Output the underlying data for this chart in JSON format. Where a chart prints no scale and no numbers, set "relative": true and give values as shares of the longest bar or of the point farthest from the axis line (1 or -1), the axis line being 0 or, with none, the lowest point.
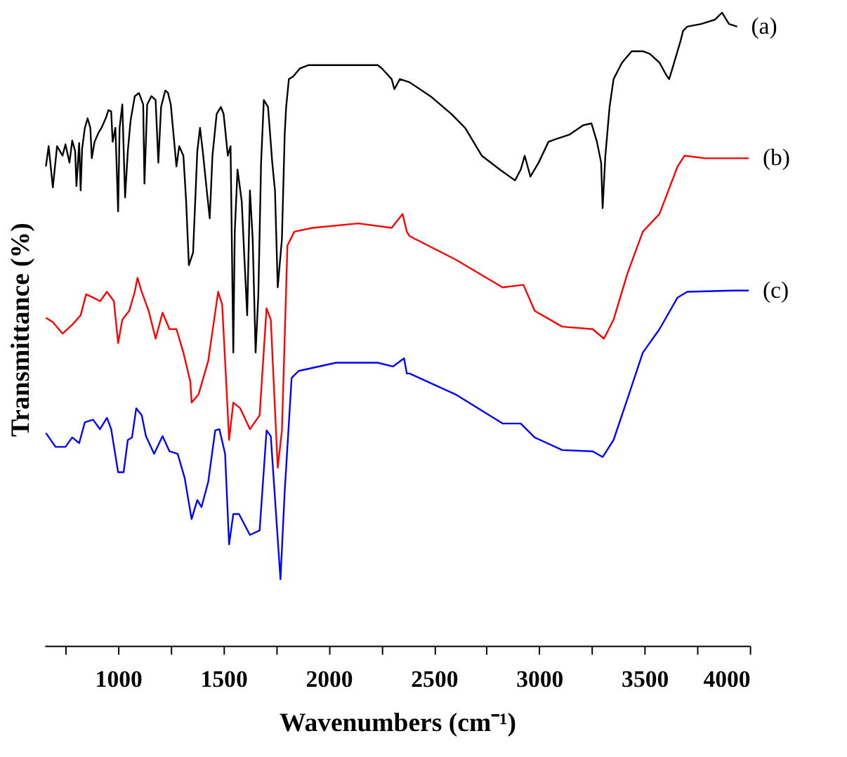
{
  "chart_data": {
    "type": "line",
    "relative": true,
    "xlabel": "Wavenumbers (cm⁻¹)",
    "ylabel": "Transmittance (%)",
    "xlim": [
      650,
      4000
    ],
    "xticks": [
      {
        "value": 750,
        "label": null
      },
      1000,
      {
        "value": 1250,
        "label": null
      },
      1500,
      {
        "value": 1750,
        "label": null
      },
      2000,
      {
        "value": 2250,
        "label": null
      },
      2500,
      {
        "value": 2750,
        "label": null
      },
      3000,
      {
        "value": 3250,
        "label": null
      },
      3500,
      {
        "value": 3750,
        "label": null
      },
      4000
    ],
    "tick_labels": "x",
    "grid": false,
    "legend": false,
    "marker": "none",
    "line_style": "solid",
    "series": [
      {
        "name": "(a)",
        "color": "#000000",
        "x": [
          657,
          670,
          690,
          710,
          736,
          750,
          769,
          782,
          796,
          802,
          815,
          822,
          829,
          842,
          855,
          868,
          875,
          888,
          908,
          921,
          941,
          954,
          967,
          974,
          987,
          1000,
          1007,
          1020,
          1033,
          1046,
          1059,
          1079,
          1099,
          1119,
          1125,
          1138,
          1158,
          1178,
          1191,
          1204,
          1224,
          1237,
          1250,
          1277,
          1290,
          1310,
          1323,
          1336,
          1356,
          1376,
          1389,
          1402,
          1422,
          1435,
          1448,
          1468,
          1488,
          1501,
          1521,
          1534,
          1547,
          1554,
          1567,
          1587,
          1600,
          1613,
          1626,
          1639,
          1653,
          1666,
          1679,
          1692,
          1712,
          1732,
          1745,
          1758,
          1778,
          1791,
          1798,
          1811,
          1831,
          1864,
          1903,
          1989,
          2233,
          2252,
          2299,
          2312,
          2338,
          2384,
          2483,
          2582,
          2648,
          2727,
          2813,
          2885,
          2912,
          2931,
          2958,
          2997,
          3044,
          3076,
          3142,
          3208,
          3248,
          3274,
          3294,
          3301,
          3314,
          3334,
          3353,
          3393,
          3439,
          3492,
          3525,
          3571,
          3604,
          3617,
          3637,
          3670,
          3683,
          3703,
          3769,
          3835,
          3868,
          3901,
          3940
        ],
        "values": [
          0.757,
          0.789,
          0.724,
          0.789,
          0.774,
          0.792,
          0.763,
          0.798,
          0.781,
          0.726,
          0.794,
          0.719,
          0.785,
          0.818,
          0.833,
          0.818,
          0.77,
          0.796,
          0.811,
          0.818,
          0.833,
          0.846,
          0.844,
          0.796,
          0.818,
          0.686,
          0.818,
          0.855,
          0.708,
          0.781,
          0.829,
          0.868,
          0.873,
          0.855,
          0.73,
          0.855,
          0.868,
          0.862,
          0.763,
          0.851,
          0.877,
          0.873,
          0.855,
          0.757,
          0.789,
          0.774,
          0.702,
          0.601,
          0.621,
          0.781,
          0.818,
          0.781,
          0.716,
          0.675,
          0.774,
          0.84,
          0.851,
          0.84,
          0.774,
          0.789,
          0.463,
          0.654,
          0.752,
          0.702,
          0.61,
          0.522,
          0.719,
          0.643,
          0.463,
          0.555,
          0.763,
          0.862,
          0.851,
          0.763,
          0.719,
          0.566,
          0.643,
          0.807,
          0.851,
          0.895,
          0.899,
          0.912,
          0.917,
          0.917,
          0.917,
          0.912,
          0.895,
          0.879,
          0.895,
          0.89,
          0.868,
          0.84,
          0.818,
          0.774,
          0.752,
          0.735,
          0.752,
          0.774,
          0.741,
          0.763,
          0.796,
          0.8,
          0.807,
          0.822,
          0.825,
          0.796,
          0.763,
          0.691,
          0.774,
          0.851,
          0.895,
          0.921,
          0.939,
          0.939,
          0.935,
          0.921,
          0.901,
          0.895,
          0.917,
          0.954,
          0.971,
          0.978,
          0.982,
          0.989,
          1,
          0.982,
          0.978
        ]
      },
      {
        "name": "(b)",
        "color": "#ff0000",
        "x": [
          657,
          690,
          736,
          782,
          822,
          848,
          881,
          914,
          947,
          980,
          1000,
          1020,
          1053,
          1079,
          1092,
          1112,
          1145,
          1178,
          1211,
          1244,
          1277,
          1310,
          1343,
          1349,
          1382,
          1428,
          1475,
          1494,
          1514,
          1527,
          1547,
          1580,
          1626,
          1672,
          1705,
          1725,
          1758,
          1778,
          1804,
          1837,
          1923,
          2140,
          2299,
          2351,
          2371,
          2384,
          2602,
          2826,
          2925,
          2978,
          3109,
          3254,
          3307,
          3353,
          3419,
          3492,
          3571,
          3657,
          3690,
          3788,
          3920,
          3995
        ],
        "values": [
          0.518,
          0.511,
          0.493,
          0.507,
          0.522,
          0.555,
          0.55,
          0.544,
          0.559,
          0.544,
          0.478,
          0.515,
          0.529,
          0.559,
          0.581,
          0.559,
          0.529,
          0.485,
          0.526,
          0.5,
          0.5,
          0.463,
          0.417,
          0.384,
          0.397,
          0.45,
          0.559,
          0.539,
          0.412,
          0.325,
          0.384,
          0.375,
          0.342,
          0.364,
          0.533,
          0.515,
          0.281,
          0.34,
          0.632,
          0.654,
          0.66,
          0.667,
          0.66,
          0.682,
          0.654,
          0.647,
          0.61,
          0.566,
          0.57,
          0.529,
          0.504,
          0.5,
          0.485,
          0.515,
          0.588,
          0.654,
          0.682,
          0.757,
          0.774,
          0.77,
          0.77,
          0.77
        ]
      },
      {
        "name": "(c)",
        "color": "#0000ff",
        "x": [
          657,
          703,
          750,
          782,
          815,
          842,
          881,
          914,
          947,
          967,
          1000,
          1026,
          1046,
          1066,
          1086,
          1112,
          1132,
          1171,
          1211,
          1244,
          1283,
          1316,
          1349,
          1376,
          1396,
          1428,
          1461,
          1481,
          1508,
          1527,
          1547,
          1574,
          1626,
          1672,
          1705,
          1725,
          1771,
          1791,
          1824,
          1857,
          2035,
          2233,
          2305,
          2358,
          2371,
          2384,
          2602,
          2826,
          2912,
          2978,
          3109,
          3254,
          3301,
          3353,
          3419,
          3492,
          3571,
          3657,
          3703,
          3920,
          3995
        ],
        "values": [
          0.336,
          0.314,
          0.314,
          0.329,
          0.32,
          0.353,
          0.357,
          0.342,
          0.36,
          0.342,
          0.274,
          0.274,
          0.325,
          0.329,
          0.375,
          0.364,
          0.331,
          0.303,
          0.331,
          0.307,
          0.303,
          0.265,
          0.2,
          0.23,
          0.219,
          0.259,
          0.34,
          0.342,
          0.303,
          0.16,
          0.208,
          0.208,
          0.175,
          0.182,
          0.34,
          0.331,
          0.105,
          0.243,
          0.423,
          0.434,
          0.447,
          0.447,
          0.441,
          0.454,
          0.43,
          0.43,
          0.397,
          0.351,
          0.351,
          0.329,
          0.309,
          0.307,
          0.298,
          0.325,
          0.39,
          0.463,
          0.5,
          0.55,
          0.559,
          0.561,
          0.561
        ]
      }
    ]
  }
}
